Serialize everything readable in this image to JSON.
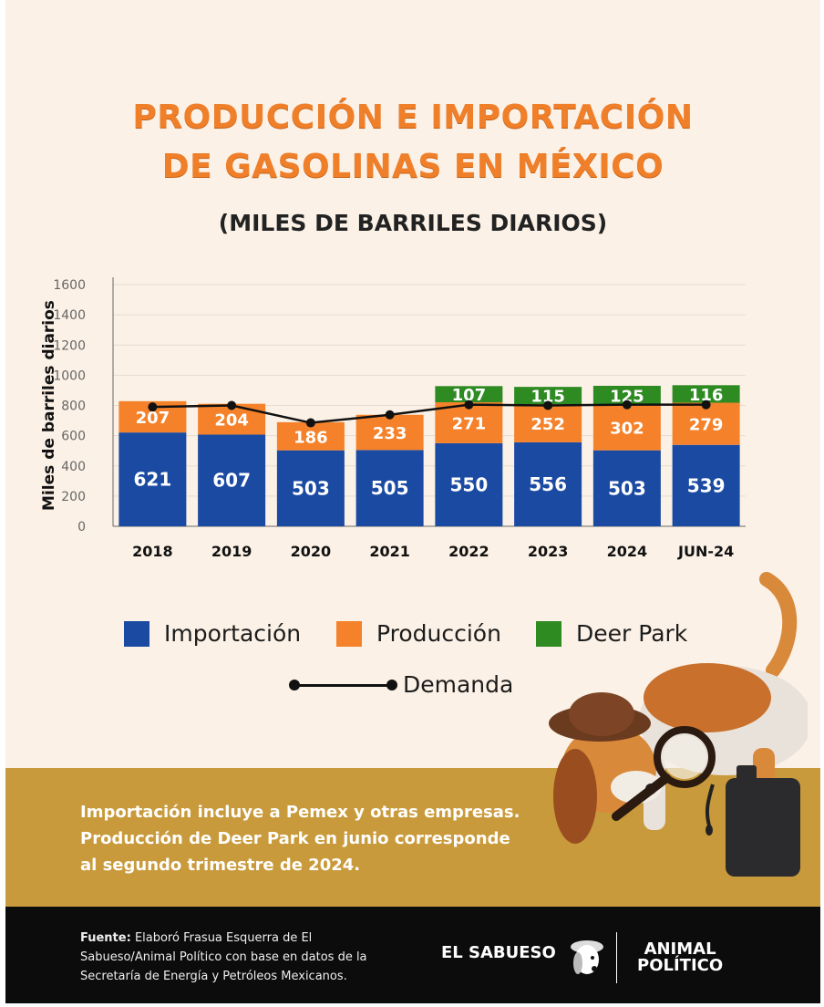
{
  "header": {
    "title_line1": "PRODUCCIÓN E IMPORTACIÓN",
    "title_line2": "DE GASOLINAS EN MÉXICO",
    "subtitle": "(MILES DE BARRILES DIARIOS)"
  },
  "legend": {
    "importacion": "Importación",
    "produccion": "Producción",
    "deer_park": "Deer Park",
    "demanda": "Demanda"
  },
  "colors": {
    "importacion": "#1b4aa3",
    "produccion": "#f5822a",
    "deer_park": "#2e8b22",
    "demanda": "#111111",
    "title": "#f07f2a",
    "note_bg": "#c99a3b",
    "footer_bg": "#0c0c0c"
  },
  "chart_data": {
    "type": "bar",
    "stacked": true,
    "title": "PRODUCCIÓN E IMPORTACIÓN DE GASOLINAS EN MÉXICO",
    "subtitle": "(MILES DE BARRILES DIARIOS)",
    "xlabel": "",
    "ylabel": "Miles de barriles diarios",
    "ylim": [
      0,
      1600
    ],
    "yticks": [
      0,
      200,
      400,
      600,
      800,
      1000,
      1200,
      1400,
      1600
    ],
    "grid": true,
    "legend_position": "bottom",
    "categories": [
      "2018",
      "2019",
      "2020",
      "2021",
      "2022",
      "2023",
      "2024",
      "JUN-24"
    ],
    "series": [
      {
        "name": "Importación",
        "color": "#1b4aa3",
        "values": [
          621,
          607,
          503,
          505,
          550,
          556,
          503,
          539
        ]
      },
      {
        "name": "Producción",
        "color": "#f5822a",
        "values": [
          207,
          204,
          186,
          233,
          271,
          252,
          302,
          279
        ]
      },
      {
        "name": "Deer Park",
        "color": "#2e8b22",
        "values": [
          null,
          null,
          null,
          null,
          107,
          115,
          125,
          116
        ]
      },
      {
        "name": "Demanda",
        "type": "line",
        "color": "#111111",
        "values": [
          790,
          800,
          685,
          738,
          805,
          800,
          805,
          805
        ]
      }
    ]
  },
  "note": {
    "line1": "Importación incluye a Pemex y otras empresas.",
    "line2": "Producción de Deer Park en junio corresponde",
    "line3": "al segundo trimestre de 2024."
  },
  "footer": {
    "source_label": "Fuente:",
    "source_text": "Elaboró Frasua Esquerra de El Sabueso/Animal Político con base en datos de la Secretaría de Energía y Petróleos Mexicanos.",
    "logo_left": "EL SABUESO",
    "logo_right_line1": "ANIMAL",
    "logo_right_line2": "POLÍTICO"
  }
}
